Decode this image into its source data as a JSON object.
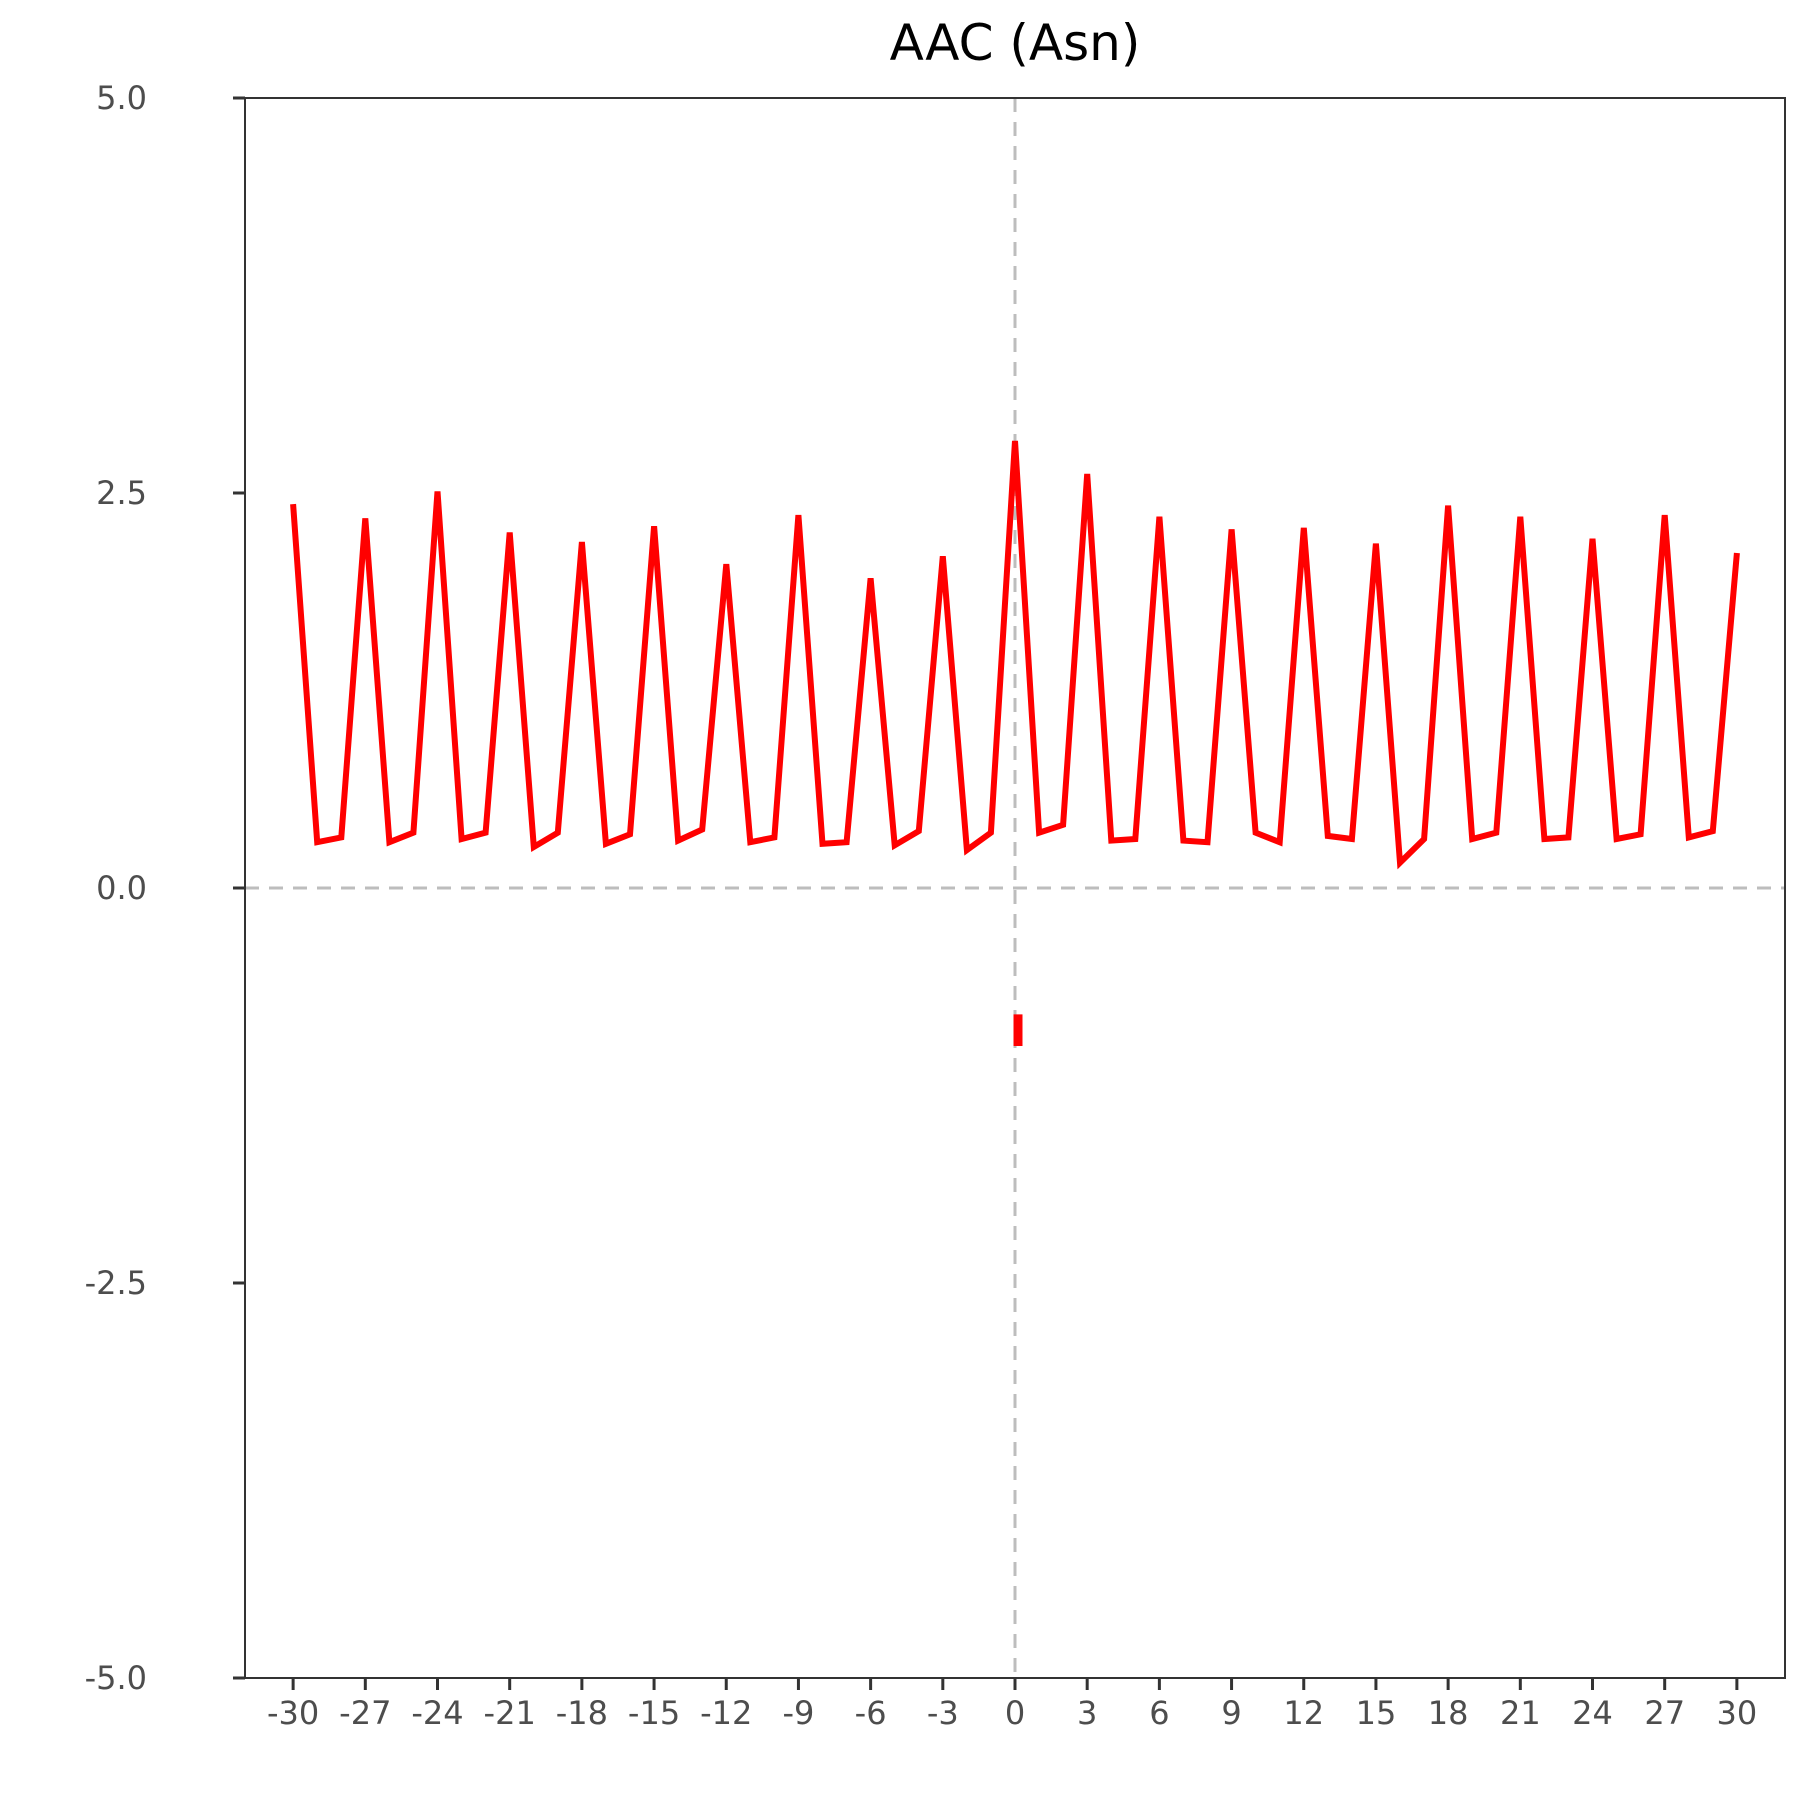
{
  "chart_data": {
    "type": "line",
    "title": "AAC (Asn)",
    "xlabel": "",
    "ylabel": "",
    "xlim": [
      -32,
      32
    ],
    "ylim": [
      -5,
      5
    ],
    "x_ticks": [
      -30,
      -27,
      -24,
      -21,
      -18,
      -15,
      -12,
      -9,
      -6,
      -3,
      0,
      3,
      6,
      9,
      12,
      15,
      18,
      21,
      24,
      27,
      30
    ],
    "x_tick_labels": [
      "-30",
      "-27",
      "-24",
      "-21",
      "-18",
      "-15",
      "-12",
      "-9",
      "-6",
      "-3",
      "0",
      "3",
      "6",
      "9",
      "12",
      "15",
      "18",
      "21",
      "24",
      "27",
      "30"
    ],
    "y_ticks": [
      5.0,
      2.5,
      0.0,
      -2.5,
      -5.0
    ],
    "y_tick_labels": [
      "5.0",
      "2.5",
      "0.0",
      "-2.5",
      "-5.0"
    ],
    "reference_lines": {
      "x": 0,
      "y": 0,
      "style": "dashed",
      "color": "#bdbdbd"
    },
    "grid": false,
    "series": [
      {
        "color": "#ff0000",
        "x": [
          -30,
          -29,
          -28,
          -27,
          -26,
          -25,
          -24,
          -23,
          -22,
          -21,
          -20,
          -19,
          -18,
          -17,
          -16,
          -15,
          -14,
          -13,
          -12,
          -11,
          -10,
          -9,
          -8,
          -7,
          -6,
          -5,
          -4,
          -3,
          -2,
          -1,
          0,
          1,
          2,
          3,
          4,
          5,
          6,
          7,
          8,
          9,
          10,
          11,
          12,
          13,
          14,
          15,
          16,
          17,
          18,
          19,
          20,
          21,
          22,
          23,
          24,
          25,
          26,
          27,
          28,
          29,
          30
        ],
        "y": [
          2.43,
          0.29,
          0.32,
          2.34,
          0.29,
          0.35,
          2.51,
          0.31,
          0.35,
          2.25,
          0.26,
          0.35,
          2.19,
          0.28,
          0.34,
          2.29,
          0.3,
          0.37,
          2.05,
          0.29,
          0.32,
          2.36,
          0.28,
          0.29,
          1.96,
          0.27,
          0.36,
          2.1,
          0.24,
          0.35,
          2.83,
          0.35,
          0.4,
          2.62,
          0.3,
          0.31,
          2.35,
          0.3,
          0.29,
          2.27,
          0.35,
          0.29,
          2.28,
          0.33,
          0.31,
          2.18,
          0.16,
          0.31,
          2.42,
          0.31,
          0.35,
          2.35,
          0.31,
          0.32,
          2.21,
          0.31,
          0.34,
          2.36,
          0.32,
          0.36,
          2.12
        ]
      }
    ],
    "markers": [
      {
        "x": 0,
        "y_from": -0.8,
        "y_to": -1.0,
        "color": "#ff0000"
      }
    ]
  }
}
